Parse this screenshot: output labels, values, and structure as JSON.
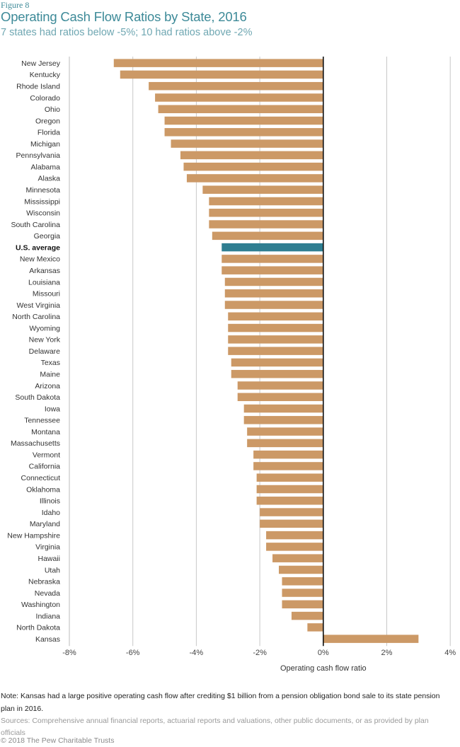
{
  "header": {
    "figure_label": "Figure 8",
    "title": "Operating Cash Flow Ratios by State, 2016",
    "subtitle": "7 states had ratios below -5%; 10 had ratios above -2%"
  },
  "colors": {
    "bar": "#CC9966",
    "highlight_bar": "#2F7E91",
    "title": "#3D8A98",
    "gridline": "#C8C8C8",
    "zero_line": "#111111"
  },
  "chart_data": {
    "type": "bar",
    "orientation": "horizontal",
    "title": "Operating Cash Flow Ratios by State, 2016",
    "subtitle": "7 states had ratios below -5%; 10 had ratios above -2%",
    "xlabel": "Operating cash flow ratio",
    "ylabel": "",
    "xlim": [
      -8,
      4
    ],
    "x_ticks": [
      -8,
      -6,
      -4,
      -2,
      0,
      2,
      4
    ],
    "x_tick_labels": [
      "-8%",
      "-6%",
      "-4%",
      "-2%",
      "0%",
      "2%",
      "4%"
    ],
    "grid": "vertical",
    "unit": "percent",
    "highlight": "U.S. average",
    "categories": [
      "New Jersey",
      "Kentucky",
      "Rhode Island",
      "Colorado",
      "Ohio",
      "Oregon",
      "Florida",
      "Michigan",
      "Pennsylvania",
      "Alabama",
      "Alaska",
      "Minnesota",
      "Mississippi",
      "Wisconsin",
      "South Carolina",
      "Georgia",
      "U.S. average",
      "New Mexico",
      "Arkansas",
      "Louisiana",
      "Missouri",
      "West Virginia",
      "North Carolina",
      "Wyoming",
      "New York",
      "Delaware",
      "Texas",
      "Maine",
      "Arizona",
      "South Dakota",
      "Iowa",
      "Tennessee",
      "Montana",
      "Massachusetts",
      "Vermont",
      "California",
      "Connecticut",
      "Oklahoma",
      "Illinois",
      "Idaho",
      "Maryland",
      "New Hampshire",
      "Virginia",
      "Hawaii",
      "Utah",
      "Nebraska",
      "Nevada",
      "Washington",
      "Indiana",
      "North Dakota",
      "Kansas"
    ],
    "values": [
      -6.6,
      -6.4,
      -5.5,
      -5.3,
      -5.2,
      -5.0,
      -5.0,
      -4.8,
      -4.5,
      -4.4,
      -4.3,
      -3.8,
      -3.6,
      -3.6,
      -3.6,
      -3.5,
      -3.2,
      -3.2,
      -3.2,
      -3.1,
      -3.1,
      -3.1,
      -3.0,
      -3.0,
      -3.0,
      -3.0,
      -2.9,
      -2.9,
      -2.7,
      -2.7,
      -2.5,
      -2.5,
      -2.4,
      -2.4,
      -2.2,
      -2.2,
      -2.1,
      -2.1,
      -2.1,
      -2.0,
      -2.0,
      -1.8,
      -1.8,
      -1.6,
      -1.4,
      -1.3,
      -1.3,
      -1.3,
      -1.0,
      -0.5,
      3.0
    ]
  },
  "footer": {
    "note": "Note: Kansas had a large positive operating cash flow after crediting $1 billion from a pension obligation bond sale to its state pension plan in 2016.",
    "sources": "Sources: Comprehensive annual financial reports, actuarial reports and valuations, other public documents, or as provided by plan officials",
    "copyright": "© 2018 The Pew Charitable Trusts"
  }
}
